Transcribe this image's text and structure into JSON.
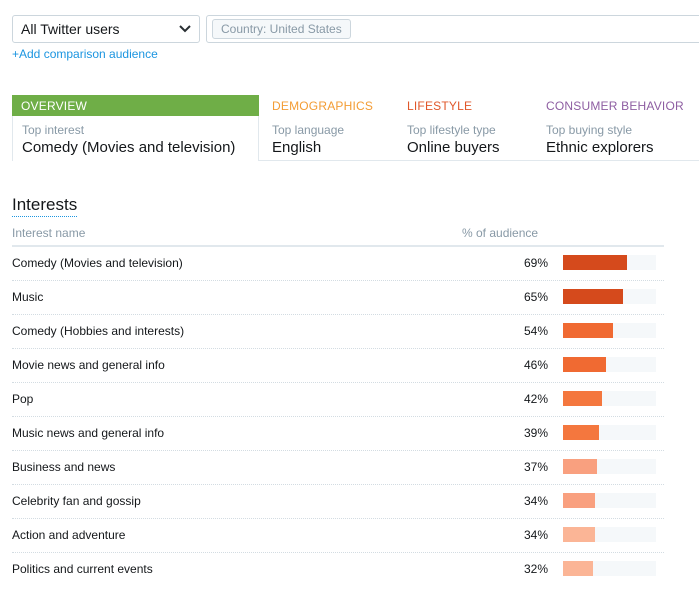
{
  "audience_select": {
    "label": "All Twitter users",
    "icon": "chevron-down-icon"
  },
  "filter": {
    "tag": "Country: United States"
  },
  "add_comparison": "+Add comparison audience",
  "tabs": [
    {
      "title": "OVERVIEW",
      "sub": "Top interest",
      "value": "Comedy (Movies and television)",
      "color": "#6fae47"
    },
    {
      "title": "DEMOGRAPHICS",
      "sub": "Top language",
      "value": "English",
      "color": "#f39c34"
    },
    {
      "title": "LIFESTYLE",
      "sub": "Top lifestyle type",
      "value": "Online buyers",
      "color": "#e0572a"
    },
    {
      "title": "CONSUMER BEHAVIOR",
      "sub": "Top buying style",
      "value": "Ethnic explorers",
      "color": "#8e5ea2"
    }
  ],
  "interests": {
    "title": "Interests",
    "col_name": "Interest name",
    "col_pct": "% of audience",
    "rows": [
      {
        "name": "Comedy (Movies and television)",
        "pct_label": "69%",
        "pct": 69,
        "color": "#d54a1c"
      },
      {
        "name": "Music",
        "pct_label": "65%",
        "pct": 65,
        "color": "#d54a1c"
      },
      {
        "name": "Comedy (Hobbies and interests)",
        "pct_label": "54%",
        "pct": 54,
        "color": "#f06a32"
      },
      {
        "name": "Movie news and general info",
        "pct_label": "46%",
        "pct": 46,
        "color": "#f06a32"
      },
      {
        "name": "Pop",
        "pct_label": "42%",
        "pct": 42,
        "color": "#f4773e"
      },
      {
        "name": "Music news and general info",
        "pct_label": "39%",
        "pct": 39,
        "color": "#f4773e"
      },
      {
        "name": "Business and news",
        "pct_label": "37%",
        "pct": 37,
        "color": "#f9a07f"
      },
      {
        "name": "Celebrity fan and gossip",
        "pct_label": "34%",
        "pct": 34,
        "color": "#f9a07f"
      },
      {
        "name": "Action and adventure",
        "pct_label": "34%",
        "pct": 34,
        "color": "#fbb596"
      },
      {
        "name": "Politics and current events",
        "pct_label": "32%",
        "pct": 32,
        "color": "#fbb596"
      }
    ]
  }
}
